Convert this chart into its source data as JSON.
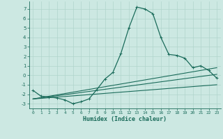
{
  "xlabel": "Humidex (Indice chaleur)",
  "xlim": [
    -0.5,
    23.5
  ],
  "ylim": [
    -3.5,
    7.8
  ],
  "yticks": [
    -3,
    -2,
    -1,
    0,
    1,
    2,
    3,
    4,
    5,
    6,
    7
  ],
  "xticks": [
    0,
    1,
    2,
    3,
    4,
    5,
    6,
    7,
    8,
    9,
    10,
    11,
    12,
    13,
    14,
    15,
    16,
    17,
    18,
    19,
    20,
    21,
    22,
    23
  ],
  "bg_color": "#cce8e2",
  "line_color": "#1a6b5a",
  "grid_color": "#b0d4cc",
  "curve1_x": [
    0,
    1,
    2,
    3,
    4,
    5,
    6,
    7,
    8,
    9,
    10,
    11,
    12,
    13,
    14,
    15,
    16,
    17,
    18,
    19,
    20,
    21,
    22,
    23
  ],
  "curve1_y": [
    -1.6,
    -2.2,
    -2.3,
    -2.4,
    -2.6,
    -3.0,
    -2.8,
    -2.5,
    -1.5,
    -0.4,
    0.3,
    2.3,
    5.0,
    7.2,
    7.0,
    6.5,
    4.0,
    2.2,
    2.1,
    1.8,
    0.8,
    1.0,
    0.5,
    -0.3
  ],
  "curve2_x": [
    0,
    23
  ],
  "curve2_y": [
    -2.5,
    -1.0
  ],
  "curve3_x": [
    0,
    23
  ],
  "curve3_y": [
    -2.5,
    0.1
  ],
  "curve4_x": [
    0,
    23
  ],
  "curve4_y": [
    -2.5,
    0.8
  ]
}
